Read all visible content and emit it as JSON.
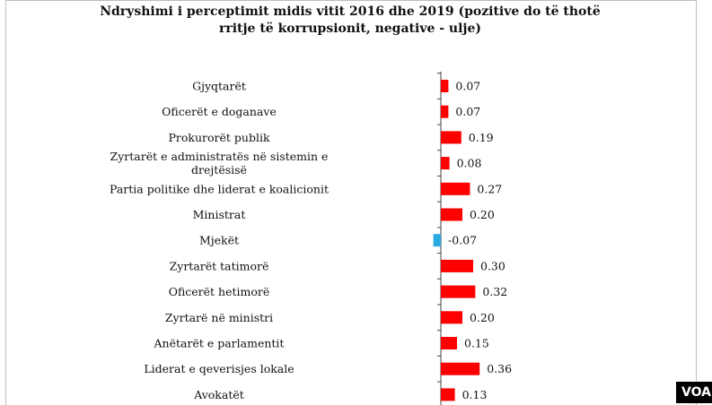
{
  "chart_data": {
    "type": "bar",
    "orientation": "horizontal",
    "title": "Ndryshimi i perceptimit midis vitit 2016 dhe 2019 (pozitive do të thotë rritje të korrupsionit, negative - ulje)",
    "title_lines": [
      "Ndryshimi i perceptimit midis vitit 2016 dhe 2019 (pozitive do të thotë",
      "rritje të korrupsionit, negative - ulje)"
    ],
    "categories": [
      [
        "Gjyqtarët"
      ],
      [
        "Oficerët e doganave"
      ],
      [
        "Prokurorët publik"
      ],
      [
        "Zyrtarët e administratës në sistemin e",
        "drejtësisë"
      ],
      [
        "Partia politike dhe liderat e koalicionit"
      ],
      [
        "Ministrat"
      ],
      [
        "Mjekët"
      ],
      [
        "Zyrtarët tatimorë"
      ],
      [
        "Oficerët hetimorë"
      ],
      [
        "Zyrtarë në ministri"
      ],
      [
        "Anëtarët e parlamentit"
      ],
      [
        "Liderat e qeverisjes lokale"
      ],
      [
        "Avokatët"
      ]
    ],
    "values": [
      0.07,
      0.07,
      0.19,
      0.08,
      0.27,
      0.2,
      -0.07,
      0.3,
      0.32,
      0.2,
      0.15,
      0.36,
      0.13
    ],
    "value_labels": [
      "0.07",
      "0.07",
      "0.19",
      "0.08",
      "0.27",
      "0.20",
      "-0.07",
      "0.30",
      "0.32",
      "0.20",
      "0.15",
      "0.36",
      "0.13"
    ],
    "colors": {
      "positive": "#ff0000",
      "negative": "#29abe2",
      "axis": "#444444"
    },
    "xlabel": "",
    "ylabel": "",
    "grid": false,
    "legend": "none"
  },
  "watermark": {
    "text": "VOA"
  }
}
